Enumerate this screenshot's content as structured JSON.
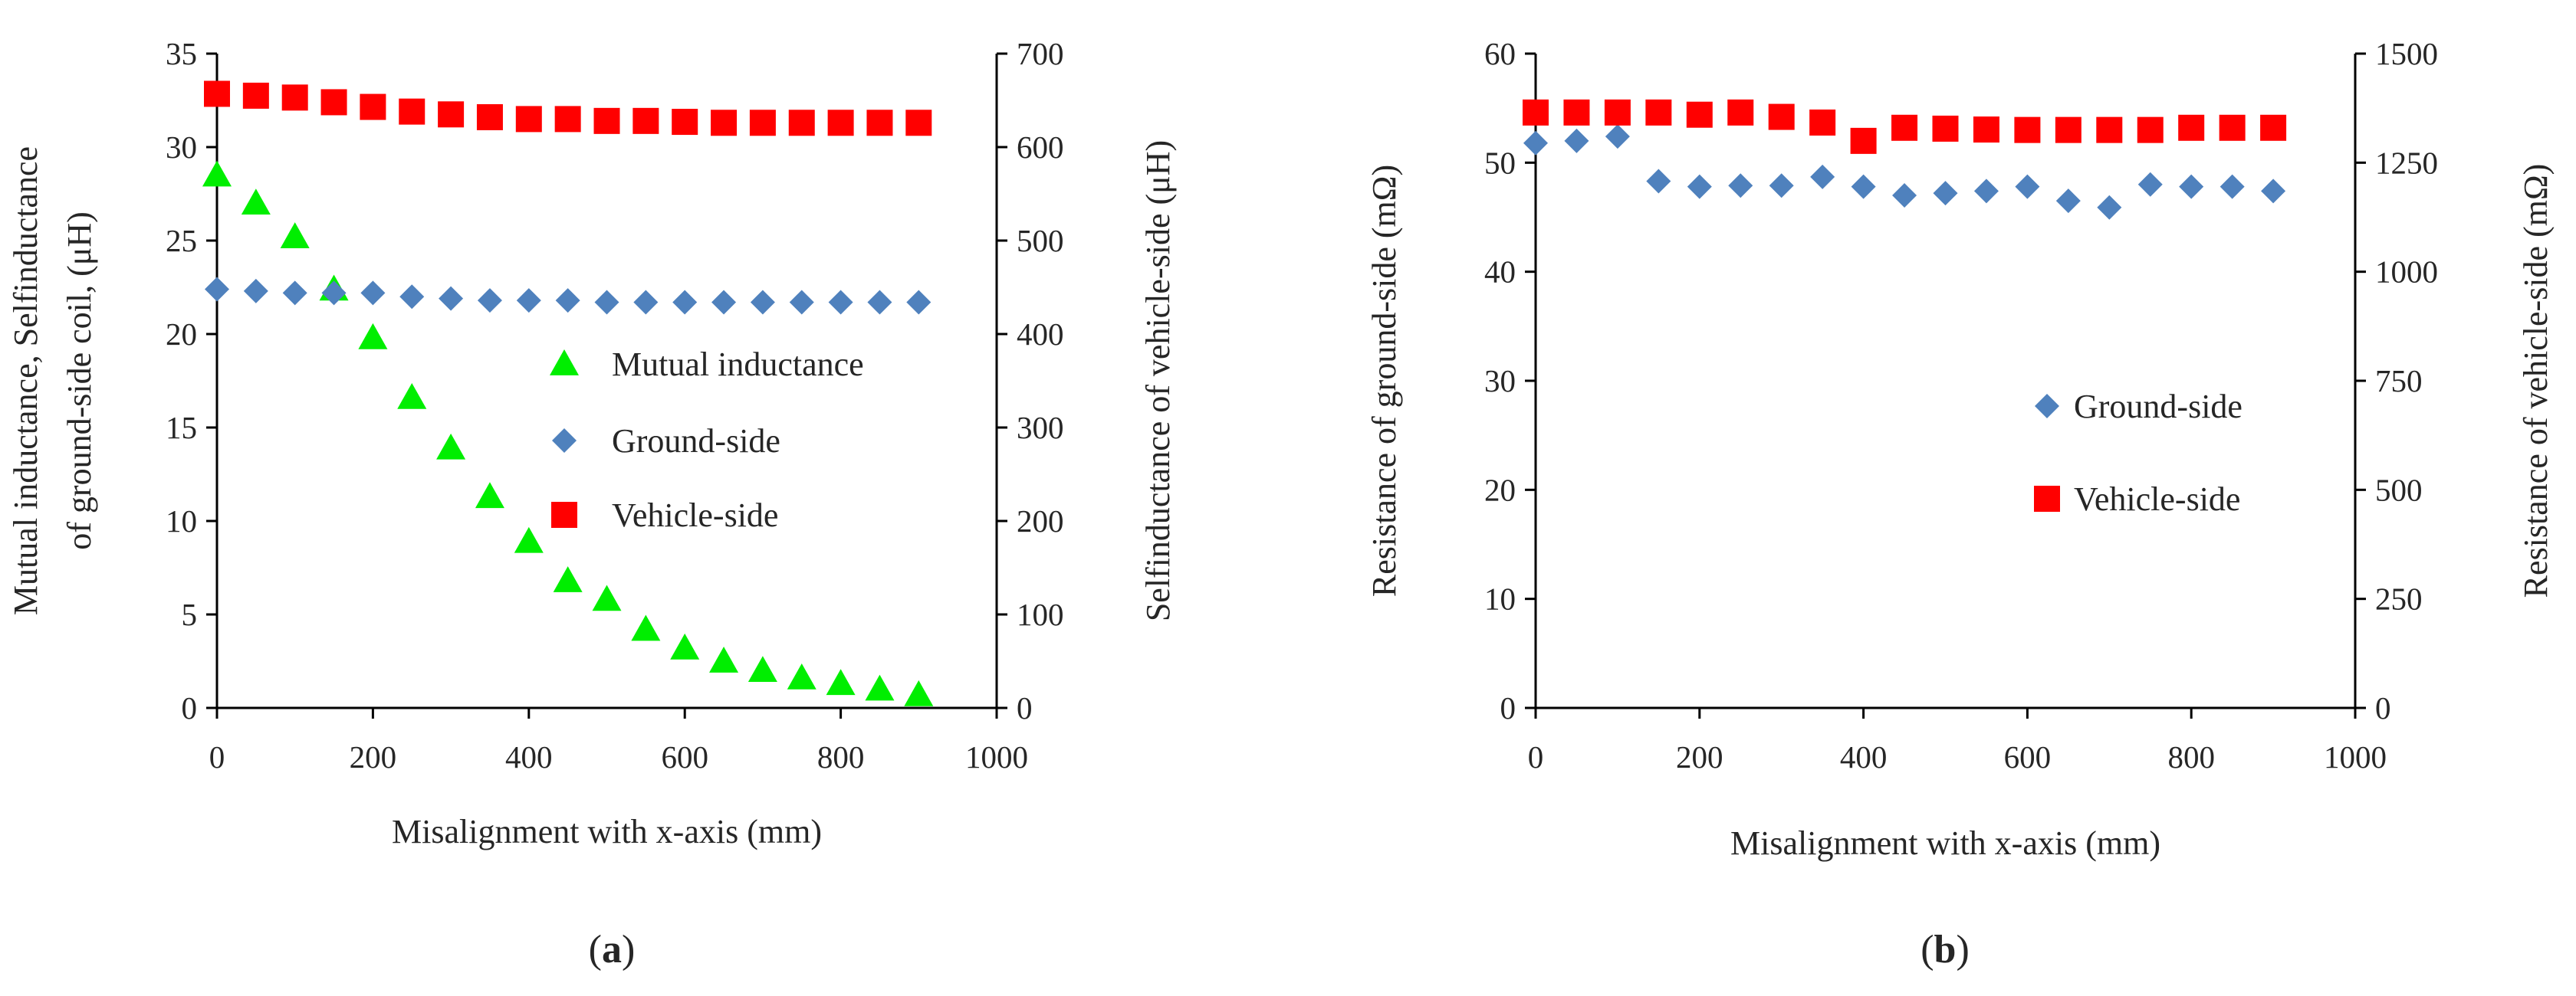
{
  "chart_data": [
    {
      "panel": "a",
      "panel_label": {
        "open": "(",
        "letter": "a",
        "close": ")"
      },
      "type": "scatter",
      "xlabel": "Misalignment with x-axis (mm)",
      "xlim": [
        0,
        1000
      ],
      "xticks": [
        0,
        200,
        400,
        600,
        800,
        1000
      ],
      "ylabel_left_line1": "Mutual inductance,  Selfinductance",
      "ylabel_left_line2": "of ground-side  coil,  (μH)",
      "ylim_left": [
        0,
        35
      ],
      "yticks_left": [
        0,
        5,
        10,
        15,
        20,
        25,
        30,
        35
      ],
      "ylabel_right": "Selfinductance of vehicle-side  (μH)",
      "ylim_right": [
        0,
        700
      ],
      "yticks_right": [
        0,
        100,
        200,
        300,
        400,
        500,
        600,
        700
      ],
      "x": [
        0,
        50,
        100,
        150,
        200,
        250,
        300,
        350,
        400,
        450,
        500,
        550,
        600,
        650,
        700,
        750,
        800,
        850,
        900
      ],
      "series": [
        {
          "name": "Mutual inductance",
          "axis": "left",
          "marker": "triangle",
          "color": "#00ee00",
          "values": [
            28.5,
            27.0,
            25.2,
            22.4,
            19.8,
            16.6,
            13.9,
            11.3,
            8.9,
            6.8,
            5.8,
            4.2,
            3.2,
            2.5,
            2.0,
            1.6,
            1.3,
            1.0,
            0.7
          ]
        },
        {
          "name": "Ground-side",
          "axis": "left",
          "marker": "diamond",
          "color": "#4f81bd",
          "values": [
            22.4,
            22.3,
            22.2,
            22.2,
            22.2,
            22.0,
            21.9,
            21.8,
            21.8,
            21.8,
            21.7,
            21.7,
            21.7,
            21.7,
            21.7,
            21.7,
            21.7,
            21.7,
            21.7
          ]
        },
        {
          "name": "Vehicle-side",
          "axis": "right",
          "marker": "square",
          "color": "#ff0000",
          "values": [
            657,
            655,
            653,
            648,
            643,
            638,
            635,
            632,
            630,
            630,
            628,
            628,
            627,
            626,
            626,
            626,
            626,
            626,
            626
          ]
        }
      ],
      "legend_position": "middle-right"
    },
    {
      "panel": "b",
      "panel_label": {
        "open": "(",
        "letter": "b",
        "close": ")"
      },
      "type": "scatter",
      "xlabel": "Misalignment with x-axis (mm)",
      "xlim": [
        0,
        1000
      ],
      "xticks": [
        0,
        200,
        400,
        600,
        800,
        1000
      ],
      "ylabel_left": "Resistance of ground-side  (mΩ)",
      "ylim_left": [
        0,
        60
      ],
      "yticks_left": [
        0,
        10,
        20,
        30,
        40,
        50,
        60
      ],
      "ylabel_right": "Resistance of vehicle-side  (mΩ)",
      "ylim_right": [
        0,
        1500
      ],
      "yticks_right": [
        0,
        250,
        500,
        750,
        1000,
        1250,
        1500
      ],
      "x": [
        0,
        50,
        100,
        150,
        200,
        250,
        300,
        350,
        400,
        450,
        500,
        550,
        600,
        650,
        700,
        750,
        800,
        850,
        900
      ],
      "series": [
        {
          "name": "Ground-side",
          "axis": "left",
          "marker": "diamond",
          "color": "#4f81bd",
          "values": [
            51.8,
            52.0,
            52.4,
            48.3,
            47.8,
            47.9,
            47.9,
            48.7,
            47.8,
            47.0,
            47.2,
            47.4,
            47.8,
            46.5,
            45.9,
            48.0,
            47.8,
            47.8,
            47.4
          ]
        },
        {
          "name": "Vehicle-side",
          "axis": "right",
          "marker": "square",
          "color": "#ff0000",
          "values": [
            1365,
            1365,
            1365,
            1365,
            1360,
            1365,
            1355,
            1342,
            1300,
            1330,
            1328,
            1326,
            1325,
            1325,
            1325,
            1325,
            1330,
            1330,
            1330
          ]
        }
      ],
      "legend_position": "middle-right"
    }
  ]
}
